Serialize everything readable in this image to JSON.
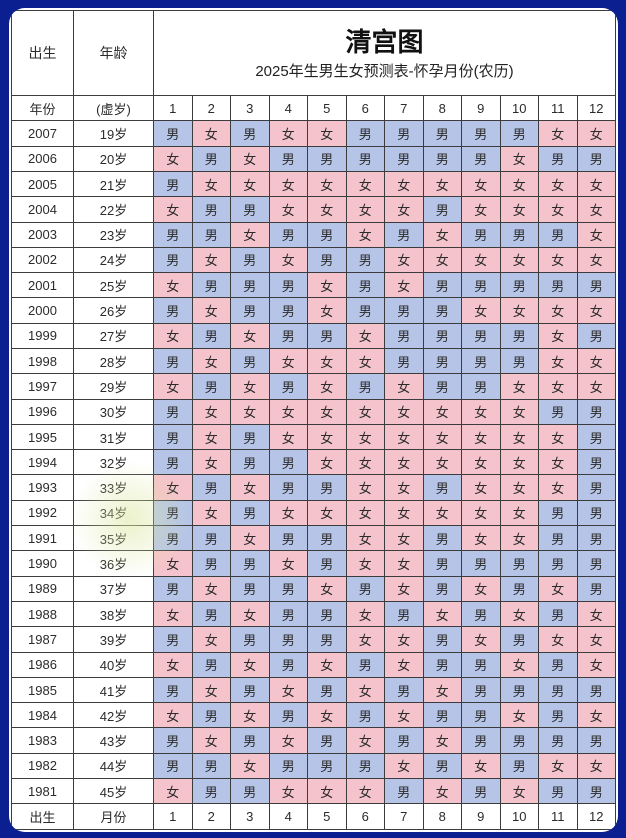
{
  "colors": {
    "background": "#0c1f90",
    "boy": "#b6c5e7",
    "girl": "#f5c3cb",
    "border": "#3c3c3c",
    "card": "#ffffff"
  },
  "legend": {
    "boy_char": "男",
    "girl_char": "女"
  },
  "header": {
    "birth_label": "出生",
    "age_label": "年龄",
    "title": "清宫图",
    "subtitle": "2025年生男生女预测表-怀孕月份(农历)"
  },
  "columns": {
    "year_label": "年份",
    "age_label": "(虚岁)",
    "months": [
      "1",
      "2",
      "3",
      "4",
      "5",
      "6",
      "7",
      "8",
      "9",
      "10",
      "11",
      "12"
    ]
  },
  "footer": {
    "birth_label": "出生",
    "month_label": "月份",
    "months": [
      "1",
      "2",
      "3",
      "4",
      "5",
      "6",
      "7",
      "8",
      "9",
      "10",
      "11",
      "12"
    ]
  },
  "rows": [
    {
      "year": "2007",
      "age": "19岁",
      "cells": [
        "男",
        "女",
        "男",
        "女",
        "女",
        "男",
        "男",
        "男",
        "男",
        "男",
        "女",
        "女"
      ]
    },
    {
      "year": "2006",
      "age": "20岁",
      "cells": [
        "女",
        "男",
        "女",
        "男",
        "男",
        "男",
        "男",
        "男",
        "男",
        "女",
        "男",
        "男"
      ]
    },
    {
      "year": "2005",
      "age": "21岁",
      "cells": [
        "男",
        "女",
        "女",
        "女",
        "女",
        "女",
        "女",
        "女",
        "女",
        "女",
        "女",
        "女"
      ]
    },
    {
      "year": "2004",
      "age": "22岁",
      "cells": [
        "女",
        "男",
        "男",
        "女",
        "女",
        "女",
        "女",
        "男",
        "女",
        "女",
        "女",
        "女"
      ]
    },
    {
      "year": "2003",
      "age": "23岁",
      "cells": [
        "男",
        "男",
        "女",
        "男",
        "男",
        "女",
        "男",
        "女",
        "男",
        "男",
        "男",
        "女"
      ]
    },
    {
      "year": "2002",
      "age": "24岁",
      "cells": [
        "男",
        "女",
        "男",
        "女",
        "男",
        "男",
        "女",
        "女",
        "女",
        "女",
        "女",
        "女"
      ]
    },
    {
      "year": "2001",
      "age": "25岁",
      "cells": [
        "女",
        "男",
        "男",
        "男",
        "女",
        "男",
        "女",
        "男",
        "男",
        "男",
        "男",
        "男"
      ]
    },
    {
      "year": "2000",
      "age": "26岁",
      "cells": [
        "男",
        "女",
        "男",
        "男",
        "女",
        "男",
        "男",
        "男",
        "女",
        "女",
        "女",
        "女"
      ]
    },
    {
      "year": "1999",
      "age": "27岁",
      "cells": [
        "女",
        "男",
        "女",
        "男",
        "男",
        "女",
        "男",
        "男",
        "男",
        "男",
        "女",
        "男"
      ]
    },
    {
      "year": "1998",
      "age": "28岁",
      "cells": [
        "男",
        "女",
        "男",
        "女",
        "女",
        "女",
        "男",
        "男",
        "男",
        "男",
        "女",
        "女"
      ]
    },
    {
      "year": "1997",
      "age": "29岁",
      "cells": [
        "女",
        "男",
        "女",
        "男",
        "女",
        "男",
        "女",
        "男",
        "男",
        "女",
        "女",
        "女"
      ]
    },
    {
      "year": "1996",
      "age": "30岁",
      "cells": [
        "男",
        "女",
        "女",
        "女",
        "女",
        "女",
        "女",
        "女",
        "女",
        "女",
        "男",
        "男"
      ]
    },
    {
      "year": "1995",
      "age": "31岁",
      "cells": [
        "男",
        "女",
        "男",
        "女",
        "女",
        "女",
        "女",
        "女",
        "女",
        "女",
        "女",
        "男"
      ]
    },
    {
      "year": "1994",
      "age": "32岁",
      "cells": [
        "男",
        "女",
        "男",
        "男",
        "女",
        "女",
        "女",
        "女",
        "女",
        "女",
        "女",
        "男"
      ]
    },
    {
      "year": "1993",
      "age": "33岁",
      "cells": [
        "女",
        "男",
        "女",
        "男",
        "男",
        "女",
        "女",
        "男",
        "女",
        "女",
        "女",
        "男"
      ]
    },
    {
      "year": "1992",
      "age": "34岁",
      "cells": [
        "男",
        "女",
        "男",
        "女",
        "女",
        "女",
        "女",
        "女",
        "女",
        "女",
        "男",
        "男"
      ]
    },
    {
      "year": "1991",
      "age": "35岁",
      "cells": [
        "男",
        "男",
        "女",
        "男",
        "男",
        "女",
        "女",
        "男",
        "女",
        "女",
        "男",
        "男"
      ]
    },
    {
      "year": "1990",
      "age": "36岁",
      "cells": [
        "女",
        "男",
        "男",
        "女",
        "男",
        "女",
        "女",
        "男",
        "男",
        "男",
        "男",
        "男"
      ]
    },
    {
      "year": "1989",
      "age": "37岁",
      "cells": [
        "男",
        "女",
        "男",
        "男",
        "女",
        "男",
        "女",
        "男",
        "女",
        "男",
        "女",
        "男"
      ]
    },
    {
      "year": "1988",
      "age": "38岁",
      "cells": [
        "女",
        "男",
        "女",
        "男",
        "男",
        "女",
        "男",
        "女",
        "男",
        "女",
        "男",
        "女"
      ]
    },
    {
      "year": "1987",
      "age": "39岁",
      "cells": [
        "男",
        "女",
        "男",
        "男",
        "男",
        "女",
        "女",
        "男",
        "女",
        "男",
        "女",
        "女"
      ]
    },
    {
      "year": "1986",
      "age": "40岁",
      "cells": [
        "女",
        "男",
        "女",
        "男",
        "女",
        "男",
        "女",
        "男",
        "男",
        "女",
        "男",
        "女"
      ]
    },
    {
      "year": "1985",
      "age": "41岁",
      "cells": [
        "男",
        "女",
        "男",
        "女",
        "男",
        "女",
        "男",
        "女",
        "男",
        "男",
        "男",
        "男"
      ]
    },
    {
      "year": "1984",
      "age": "42岁",
      "cells": [
        "女",
        "男",
        "女",
        "男",
        "女",
        "男",
        "女",
        "男",
        "男",
        "女",
        "男",
        "女"
      ]
    },
    {
      "year": "1983",
      "age": "43岁",
      "cells": [
        "男",
        "女",
        "男",
        "女",
        "男",
        "女",
        "男",
        "女",
        "男",
        "男",
        "男",
        "男"
      ]
    },
    {
      "year": "1982",
      "age": "44岁",
      "cells": [
        "男",
        "男",
        "女",
        "男",
        "男",
        "男",
        "女",
        "男",
        "女",
        "男",
        "女",
        "女"
      ]
    },
    {
      "year": "1981",
      "age": "45岁",
      "cells": [
        "女",
        "男",
        "男",
        "女",
        "女",
        "女",
        "男",
        "女",
        "男",
        "女",
        "男",
        "男"
      ]
    }
  ]
}
